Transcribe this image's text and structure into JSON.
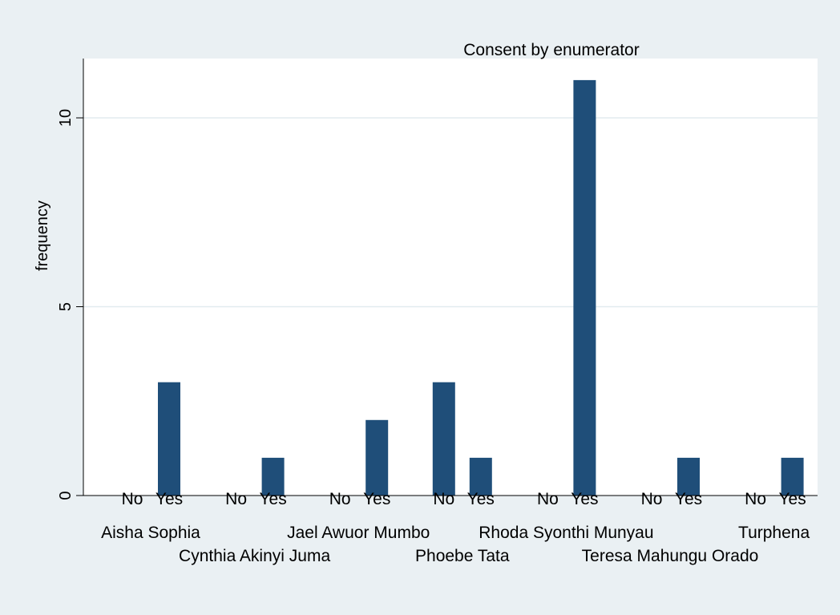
{
  "chart_data": {
    "type": "bar",
    "title": "Consent by enumerator",
    "xlabel": "",
    "ylabel": "frequency",
    "ylim": [
      0,
      11.5
    ],
    "yticks": [
      0,
      5,
      10
    ],
    "grid": true,
    "bar_color": "#1f4e79",
    "plot_background": "#ffffff",
    "page_background": "#eaf0f3",
    "subcategories": [
      "No",
      "Yes"
    ],
    "groups": [
      {
        "name": "Aisha Sophia",
        "values": [
          0,
          3
        ]
      },
      {
        "name": "Cynthia Akinyi Juma",
        "values": [
          0,
          1
        ]
      },
      {
        "name": "Jael Awuor Mumbo",
        "values": [
          0,
          2
        ]
      },
      {
        "name": "Phoebe Tata",
        "values": [
          3,
          1
        ]
      },
      {
        "name": "Rhoda Syonthi Munyau",
        "values": [
          0,
          11
        ]
      },
      {
        "name": "Teresa Mahungu Orado",
        "values": [
          0,
          1
        ]
      },
      {
        "name": "Turphena",
        "values": [
          0,
          1
        ]
      }
    ]
  }
}
